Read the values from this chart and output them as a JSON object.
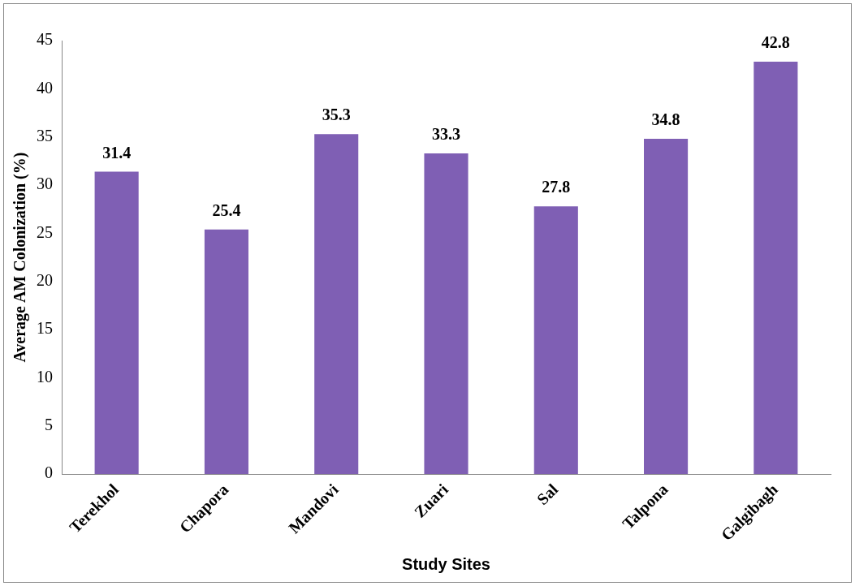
{
  "chart_data": {
    "type": "bar",
    "xlabel": "Study Sites",
    "ylabel": "Average AM Colonization (%)",
    "categories": [
      "Terekhol",
      "Chapora",
      "Mandovi",
      "Zuari",
      "Sal",
      "Talpona",
      "Galgibagh"
    ],
    "values": [
      31.4,
      25.4,
      35.3,
      33.3,
      27.8,
      34.8,
      42.8
    ],
    "color": "#7f5fb4",
    "ylim": [
      0,
      45
    ],
    "yticks": [
      0,
      5,
      10,
      15,
      20,
      25,
      30,
      35,
      40,
      45
    ],
    "grid": false,
    "data_labels": true
  }
}
